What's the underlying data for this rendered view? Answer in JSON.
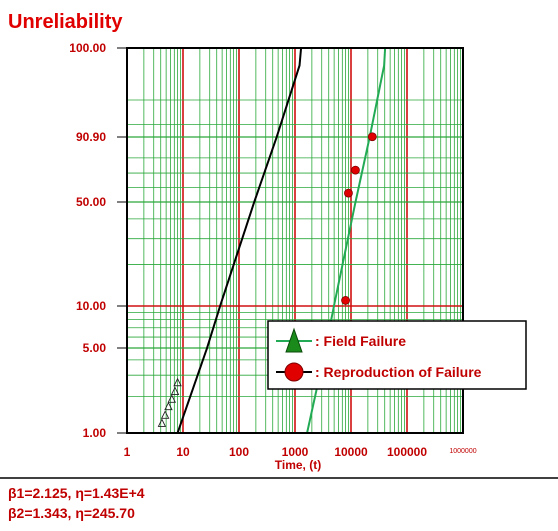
{
  "chart_data": {
    "type": "scatter",
    "title": "Unreliability",
    "xlabel": "Time, (t)",
    "ylabel": "",
    "x_scale": "log",
    "y_scale": "weibull",
    "xlim": [
      1,
      1000000
    ],
    "ylim": [
      1,
      100
    ],
    "x_ticks": [
      "1",
      "10",
      "100",
      "1000",
      "10000",
      "100000",
      "1000000"
    ],
    "y_ticks": [
      "1.00",
      "5.00",
      "10.00",
      "50.00",
      "90.90",
      "100.00"
    ],
    "y_tick_values": [
      1,
      5,
      10,
      50,
      90.9,
      100
    ],
    "grid": true,
    "legend_position": "lower-right",
    "series": [
      {
        "name": "Field Failure",
        "marker": "triangle",
        "color": "#1a8a1a",
        "line_color": "#000000",
        "fit": {
          "beta": 1.343,
          "eta": 245.7
        },
        "x": [
          4.2,
          4.8,
          5.5,
          6.3,
          7.2,
          8.0
        ],
        "y": [
          1.2,
          1.4,
          1.65,
          1.9,
          2.2,
          2.6
        ]
      },
      {
        "name": "Reproduction of Failure",
        "marker": "circle",
        "color": "#e00000",
        "line_color": "#22aa55",
        "fit": {
          "beta": 2.125,
          "eta": 14300
        },
        "x": [
          8000,
          9000,
          12000,
          24000
        ],
        "y": [
          11,
          56,
          72,
          91
        ]
      }
    ]
  },
  "legend": {
    "items": [
      "Field Failure",
      "Reproduction of Failure"
    ],
    "prefix": ":"
  },
  "params": {
    "line1": "β1=2.125, η=1.43E+4",
    "line2": "β2=1.343, η=245.70"
  }
}
